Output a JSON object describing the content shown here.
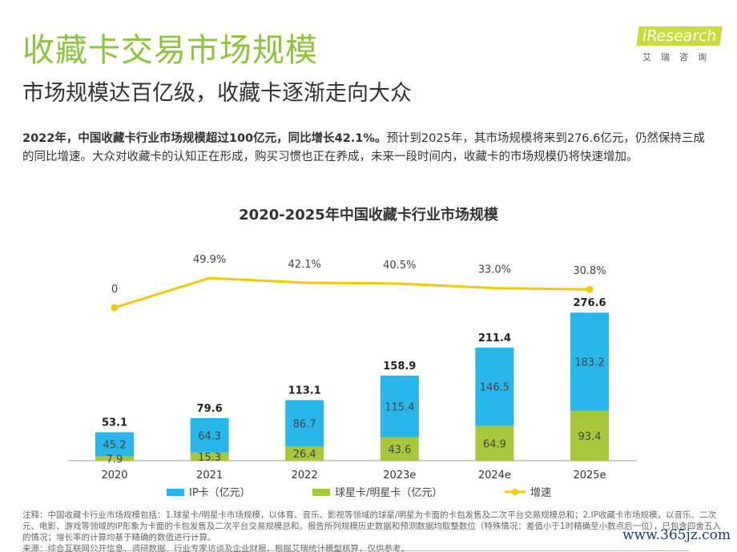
{
  "header": {
    "title": "收藏卡交易市场规模",
    "subtitle": "市场规模达百亿级，收藏卡逐渐走向大众",
    "logo_text": "iResearch",
    "logo_cn": "艾瑞咨询"
  },
  "summary": {
    "bold": "2022年，中国收藏卡行业市场规模超过100亿元，同比增长42.1%。",
    "text": "预计到2025年，其市场规模将来到276.6亿元，仍然保持三成的同比增速。大众对收藏卡的认知正在形成，购买习惯也正在养成，未来一段时间内，收藏卡的市场规模仍将快速增加。"
  },
  "chart_data": {
    "type": "bar",
    "title": "2020-2025年中国收藏卡行业市场规模",
    "categories": [
      "2020",
      "2021",
      "2022",
      "2023e",
      "2024e",
      "2025e"
    ],
    "series": [
      {
        "name": "球星卡/明星卡（亿元）",
        "values": [
          7.9,
          15.3,
          26.4,
          43.6,
          64.9,
          93.4
        ],
        "color": "#a8c83c"
      },
      {
        "name": "IP卡（亿元）",
        "values": [
          45.2,
          64.3,
          86.7,
          115.4,
          146.5,
          183.2
        ],
        "color": "#29b6ea"
      }
    ],
    "totals": [
      "53.1",
      "79.6",
      "113.1",
      "158.9",
      "211.4",
      "276.6"
    ],
    "line": {
      "name": "增速",
      "values": [
        0,
        49.9,
        42.1,
        40.5,
        33.0,
        30.8
      ],
      "labels": [
        "0",
        "49.9%",
        "42.1%",
        "40.5%",
        "33.0%",
        "30.8%"
      ],
      "color": "#f5c800"
    },
    "stacked": true,
    "legend_position": "bottom"
  },
  "footer": {
    "note": "注释：中国收藏卡行业市场规模包括：1.球星卡/明星卡市场规模，以体育、音乐、影视等领域的球星/明星为卡面的卡包发售及二次平台交易规模总和；2.IP收藏卡市场规模，以音乐、二次元、电影、游戏等领域的IP形象为卡面的卡包发售及二次平台交易规模总和。报告所列规模历史数据和预测数据均取整数位（特殊情况：差值小于1时精确至小数点后一位），已包含四舍五入的情况；增长率的计算均基于精确的数值进行计算。",
    "source": "来源：综合互联网公开信息、调研数据、行业专家访谈及企业财报，根据艾瑞统计模型核算，仅供参考。",
    "watermark": "www.365jz.com"
  }
}
